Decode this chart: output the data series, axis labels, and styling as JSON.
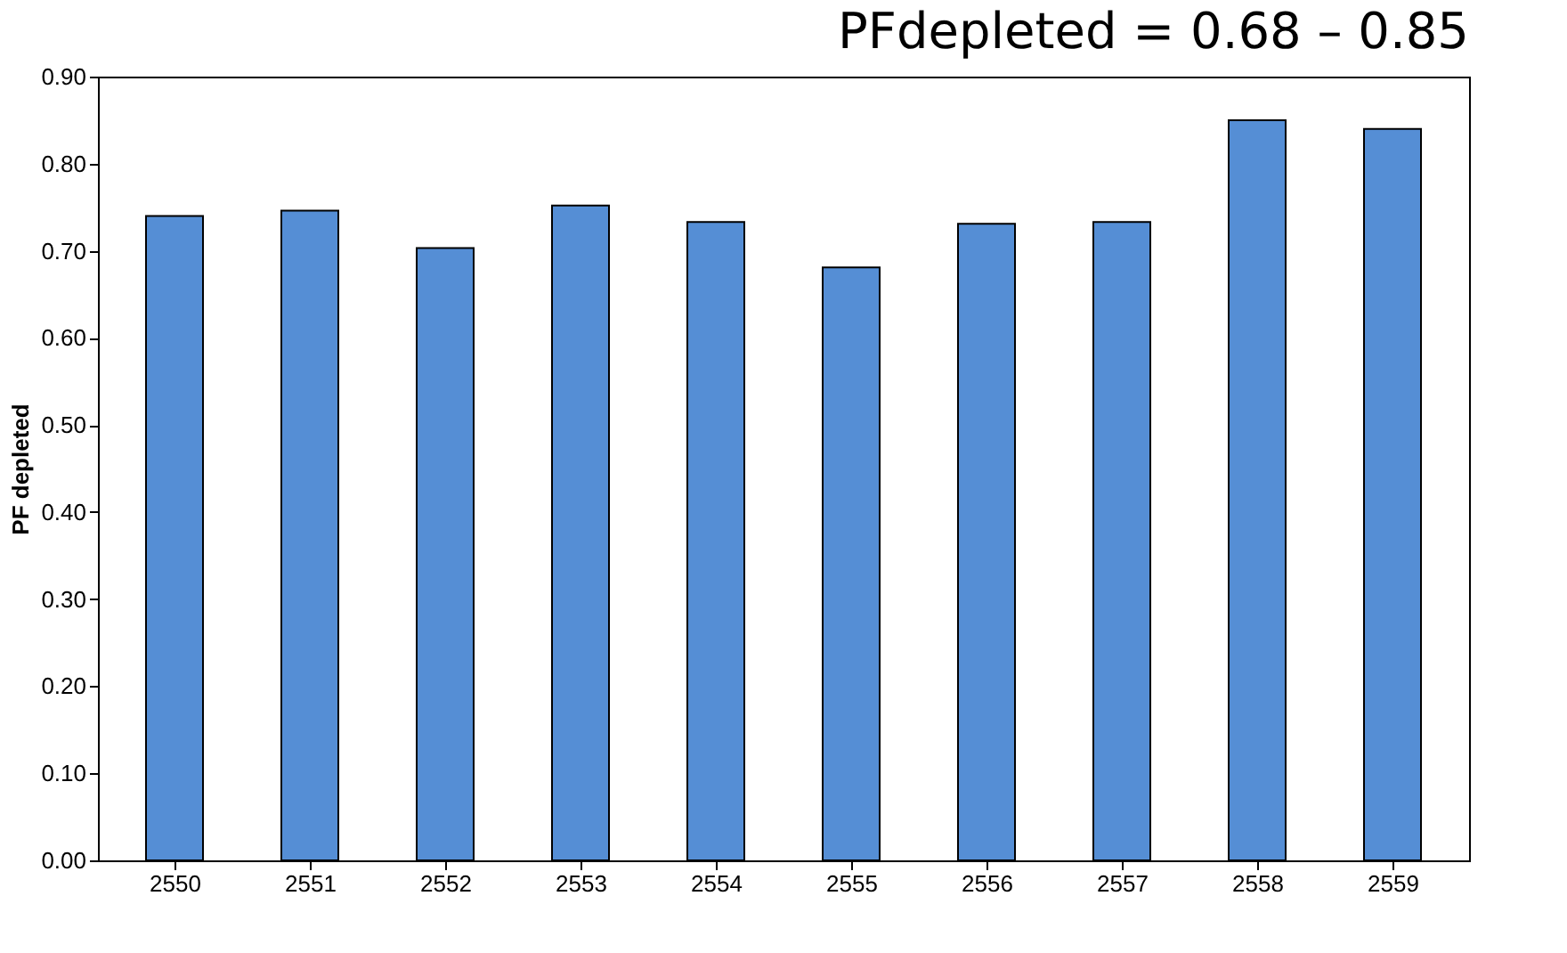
{
  "chart_data": {
    "type": "bar",
    "ylabel": "PF depleted",
    "categories": [
      "2550",
      "2551",
      "2552",
      "2553",
      "2554",
      "2555",
      "2556",
      "2557",
      "2558",
      "2559"
    ],
    "values": [
      0.74,
      0.746,
      0.703,
      0.752,
      0.733,
      0.681,
      0.731,
      0.733,
      0.85,
      0.84
    ],
    "color": "#558ed5",
    "ylim": [
      0,
      0.9
    ],
    "yticks": [
      {
        "value": 0,
        "label": "0.00"
      },
      {
        "value": 0.1,
        "label": "0.10"
      },
      {
        "value": 0.2,
        "label": "0.20"
      },
      {
        "value": 0.3,
        "label": "0.30"
      },
      {
        "value": 0.4,
        "label": "0.40"
      },
      {
        "value": 0.5,
        "label": "0.50"
      },
      {
        "value": 0.6,
        "label": "0.60"
      },
      {
        "value": 0.7,
        "label": "0.70"
      },
      {
        "value": 0.8,
        "label": "0.80"
      },
      {
        "value": 0.9,
        "label": "0.90"
      }
    ],
    "grid": false,
    "annotations": [
      "PFdepleted = 0.68 – 0.85"
    ]
  }
}
